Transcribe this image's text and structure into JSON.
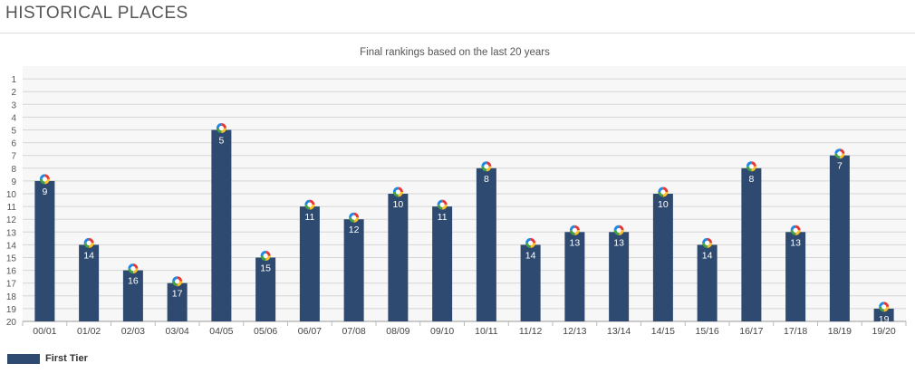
{
  "header": {
    "title": "HISTORICAL PLACES"
  },
  "chart_data": {
    "type": "bar",
    "title": "Final rankings based on the last 20 years",
    "categories": [
      "00/01",
      "01/02",
      "02/03",
      "03/04",
      "04/05",
      "05/06",
      "06/07",
      "07/08",
      "08/09",
      "09/10",
      "10/11",
      "11/12",
      "12/13",
      "13/14",
      "14/15",
      "15/16",
      "16/17",
      "17/18",
      "18/19",
      "19/20"
    ],
    "series": [
      {
        "name": "First Tier",
        "values": [
          9,
          14,
          16,
          17,
          5,
          15,
          11,
          12,
          10,
          11,
          8,
          14,
          13,
          13,
          10,
          14,
          8,
          13,
          7,
          19
        ]
      }
    ],
    "y_ticks": [
      1,
      2,
      3,
      4,
      5,
      6,
      7,
      8,
      9,
      10,
      11,
      12,
      13,
      14,
      15,
      16,
      17,
      18,
      19,
      20
    ],
    "ylim": [
      20,
      1
    ],
    "y_axis_inverted": true,
    "grid": true,
    "legend_position": "bottom-left",
    "data_labels": true,
    "marker_icon": "league-badge-icon",
    "colors": {
      "bar": "#2e4a70",
      "grid": "#d6d6d6",
      "plot_bg": "#f7f7f7"
    }
  }
}
